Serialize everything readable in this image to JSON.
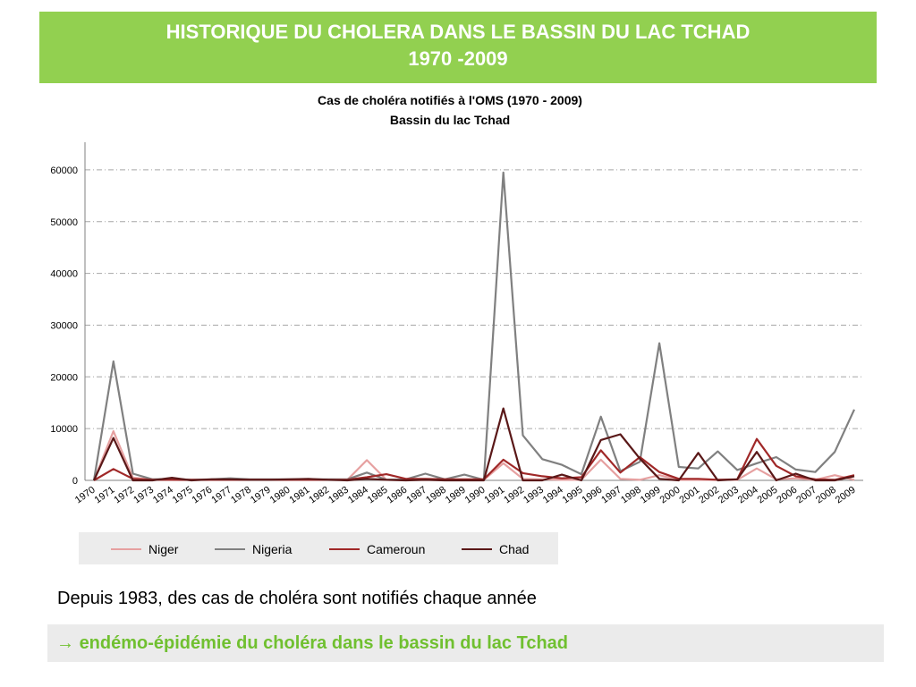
{
  "header": {
    "title_line1": "HISTORIQUE DU CHOLERA DANS LE BASSIN DU LAC TCHAD",
    "title_line2": "1970 -2009"
  },
  "chart_data": {
    "type": "line",
    "title": "Cas de choléra notifiés à l'OMS  (1970 - 2009)",
    "subtitle": "Bassin du lac Tchad",
    "x": [
      "1970",
      "1971",
      "1972",
      "1973",
      "1974",
      "1975",
      "1976",
      "1977",
      "1978",
      "1979",
      "1980",
      "1981",
      "1982",
      "1983",
      "1984",
      "1985",
      "1986",
      "1987",
      "1988",
      "1989",
      "1990",
      "1991",
      "1992",
      "1993",
      "1994",
      "1995",
      "1996",
      "1997",
      "1998",
      "1999",
      "2000",
      "2001",
      "2002",
      "2003",
      "2004",
      "2005",
      "2006",
      "2007",
      "2008",
      "2009"
    ],
    "ylim": [
      0,
      65000
    ],
    "yticks": [
      0,
      10000,
      20000,
      30000,
      40000,
      50000,
      60000
    ],
    "grid": true,
    "legend": "bottom",
    "series": [
      {
        "name": "Niger",
        "color": "#e6a0a0",
        "values": [
          0,
          9500,
          500,
          200,
          100,
          50,
          100,
          100,
          100,
          100,
          100,
          100,
          100,
          100,
          3900,
          100,
          100,
          100,
          100,
          100,
          100,
          3300,
          300,
          200,
          100,
          100,
          4000,
          300,
          100,
          1000,
          100,
          100,
          100,
          100,
          2300,
          200,
          400,
          100,
          1000,
          100
        ]
      },
      {
        "name": "Nigeria",
        "color": "#808080",
        "values": [
          0,
          23000,
          1300,
          200,
          300,
          100,
          200,
          400,
          200,
          200,
          200,
          200,
          200,
          200,
          1500,
          100,
          200,
          1300,
          200,
          1100,
          100,
          59500,
          8700,
          4100,
          3000,
          1200,
          12300,
          1800,
          3600,
          26500,
          2600,
          2300,
          5600,
          2000,
          3300,
          4500,
          2100,
          1600,
          5500,
          13700
        ]
      },
      {
        "name": "Cameroun",
        "color": "#a02828",
        "values": [
          0,
          2200,
          300,
          100,
          100,
          100,
          100,
          100,
          100,
          100,
          100,
          100,
          100,
          100,
          600,
          1200,
          300,
          300,
          200,
          200,
          200,
          4000,
          1400,
          800,
          400,
          600,
          5800,
          1500,
          4500,
          1600,
          300,
          300,
          100,
          200,
          8000,
          2800,
          800,
          200,
          100,
          1000
        ]
      },
      {
        "name": "Chad",
        "color": "#5a1818",
        "values": [
          0,
          8200,
          0,
          0,
          500,
          0,
          200,
          200,
          100,
          100,
          200,
          300,
          100,
          0,
          300,
          100,
          0,
          100,
          0,
          0,
          0,
          13900,
          0,
          0,
          1100,
          0,
          7800,
          8900,
          4200,
          300,
          0,
          5300,
          0,
          200,
          5500,
          0,
          1300,
          0,
          0,
          800
        ]
      }
    ]
  },
  "body_text": "Depuis 1983, des cas de choléra sont notifiés chaque année",
  "conclusion": {
    "arrow": "→",
    "text": "endémo-épidémie du choléra dans le bassin du lac Tchad"
  }
}
